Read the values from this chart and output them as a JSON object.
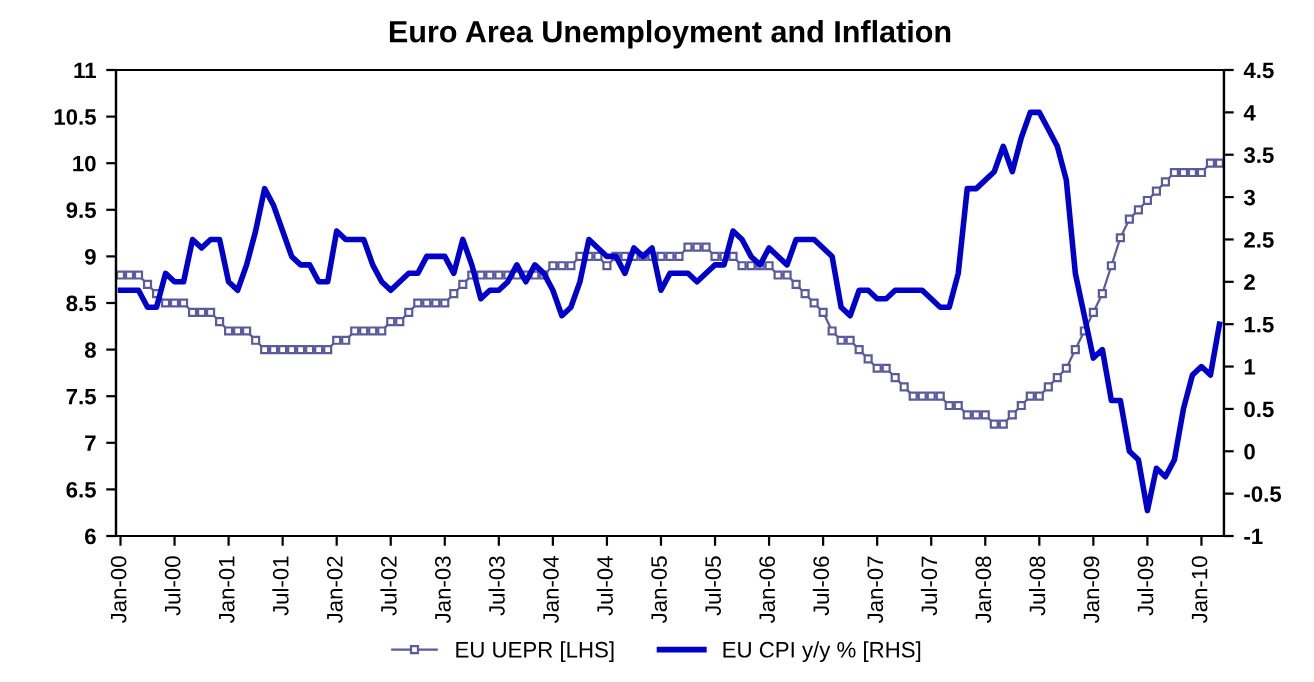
{
  "chart_data": {
    "type": "line",
    "title": "Euro Area Unemployment and Inflation",
    "categories": [
      "Jan-00",
      null,
      null,
      null,
      null,
      null,
      "Jul-00",
      null,
      null,
      null,
      null,
      null,
      "Jan-01",
      null,
      null,
      null,
      null,
      null,
      "Jul-01",
      null,
      null,
      null,
      null,
      null,
      "Jan-02",
      null,
      null,
      null,
      null,
      null,
      "Jul-02",
      null,
      null,
      null,
      null,
      null,
      "Jan-03",
      null,
      null,
      null,
      null,
      null,
      "Jul-03",
      null,
      null,
      null,
      null,
      null,
      "Jan-04",
      null,
      null,
      null,
      null,
      null,
      "Jul-04",
      null,
      null,
      null,
      null,
      null,
      "Jan-05",
      null,
      null,
      null,
      null,
      null,
      "Jul-05",
      null,
      null,
      null,
      null,
      null,
      "Jan-06",
      null,
      null,
      null,
      null,
      null,
      "Jul-06",
      null,
      null,
      null,
      null,
      null,
      "Jan-07",
      null,
      null,
      null,
      null,
      null,
      "Jul-07",
      null,
      null,
      null,
      null,
      null,
      "Jan-08",
      null,
      null,
      null,
      null,
      null,
      "Jul-08",
      null,
      null,
      null,
      null,
      null,
      "Jan-09",
      null,
      null,
      null,
      null,
      null,
      "Jul-09",
      null,
      null,
      null,
      null,
      null,
      "Jan-10",
      null,
      null
    ],
    "series": [
      {
        "name": "EU UEPR [LHS]",
        "color": "#5a5a9c",
        "marker": "square",
        "values": [
          8.8,
          8.8,
          8.8,
          8.7,
          8.6,
          8.5,
          8.5,
          8.5,
          8.4,
          8.4,
          8.4,
          8.3,
          8.2,
          8.2,
          8.2,
          8.1,
          8.0,
          8.0,
          8.0,
          8.0,
          8.0,
          8.0,
          8.0,
          8.0,
          8.1,
          8.1,
          8.2,
          8.2,
          8.2,
          8.2,
          8.3,
          8.3,
          8.4,
          8.5,
          8.5,
          8.5,
          8.5,
          8.6,
          8.7,
          8.8,
          8.8,
          8.8,
          8.8,
          8.8,
          8.8,
          8.8,
          8.8,
          8.8,
          8.9,
          8.9,
          8.9,
          9.0,
          9.0,
          9.0,
          8.9,
          9.0,
          9.0,
          9.0,
          9.0,
          9.0,
          9.0,
          9.0,
          9.0,
          9.1,
          9.1,
          9.1,
          9.0,
          9.0,
          9.0,
          8.9,
          8.9,
          8.9,
          8.9,
          8.8,
          8.8,
          8.7,
          8.6,
          8.5,
          8.4,
          8.2,
          8.1,
          8.1,
          8.0,
          7.9,
          7.8,
          7.8,
          7.7,
          7.6,
          7.5,
          7.5,
          7.5,
          7.5,
          7.4,
          7.4,
          7.3,
          7.3,
          7.3,
          7.2,
          7.2,
          7.3,
          7.4,
          7.5,
          7.5,
          7.6,
          7.7,
          7.8,
          8.0,
          8.2,
          8.4,
          8.6,
          8.9,
          9.2,
          9.4,
          9.5,
          9.6,
          9.7,
          9.8,
          9.9,
          9.9,
          9.9,
          9.9,
          10.0,
          10.0
        ]
      },
      {
        "name": "EU CPI y/y % [RHS]",
        "color": "#0000cc",
        "axis": "y2",
        "marker": "none",
        "values": [
          1.9,
          1.9,
          1.9,
          1.7,
          1.7,
          2.1,
          2.0,
          2.0,
          2.5,
          2.4,
          2.5,
          2.5,
          2.0,
          1.9,
          2.2,
          2.6,
          3.1,
          2.9,
          2.6,
          2.3,
          2.2,
          2.2,
          2.0,
          2.0,
          2.6,
          2.5,
          2.5,
          2.5,
          2.2,
          2.0,
          1.9,
          2.0,
          2.1,
          2.1,
          2.3,
          2.3,
          2.3,
          2.1,
          2.5,
          2.2,
          1.8,
          1.9,
          1.9,
          2.0,
          2.2,
          2.0,
          2.2,
          2.1,
          1.9,
          1.6,
          1.7,
          2.0,
          2.5,
          2.4,
          2.3,
          2.3,
          2.1,
          2.4,
          2.3,
          2.4,
          1.9,
          2.1,
          2.1,
          2.1,
          2.0,
          2.1,
          2.2,
          2.2,
          2.6,
          2.5,
          2.3,
          2.2,
          2.4,
          2.3,
          2.2,
          2.5,
          2.5,
          2.5,
          2.4,
          2.3,
          1.7,
          1.6,
          1.9,
          1.9,
          1.8,
          1.8,
          1.9,
          1.9,
          1.9,
          1.9,
          1.8,
          1.7,
          1.7,
          2.1,
          3.1,
          3.1,
          3.2,
          3.3,
          3.6,
          3.3,
          3.7,
          4.0,
          4.0,
          3.8,
          3.6,
          3.2,
          2.1,
          1.6,
          1.1,
          1.2,
          0.6,
          0.6,
          0.0,
          -0.1,
          -0.7,
          -0.2,
          -0.3,
          -0.1,
          0.5,
          0.9,
          1.0,
          0.9,
          1.5
        ]
      }
    ],
    "ylim": [
      6,
      11
    ],
    "yticks": [
      6,
      6.5,
      7,
      7.5,
      8,
      8.5,
      9,
      9.5,
      10,
      10.5,
      11
    ],
    "y2lim": [
      -1,
      4.5
    ],
    "y2ticks": [
      -1,
      -0.5,
      0,
      0.5,
      1,
      1.5,
      2,
      2.5,
      3,
      3.5,
      4,
      4.5
    ],
    "legend": "bottom",
    "grid": false
  }
}
